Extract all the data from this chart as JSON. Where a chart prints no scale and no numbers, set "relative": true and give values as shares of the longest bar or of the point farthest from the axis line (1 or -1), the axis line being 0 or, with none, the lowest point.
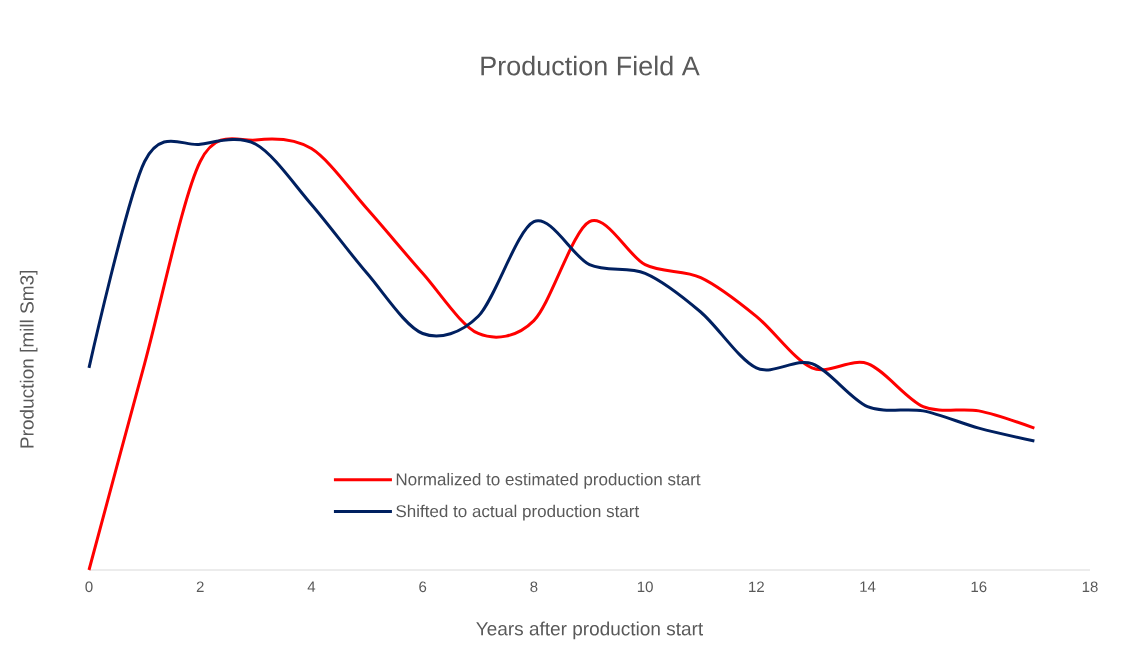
{
  "chart_data": {
    "type": "line",
    "title": "Production Field A",
    "xlabel": "Years after production start",
    "ylabel": "Production [mill Sm3]",
    "relative": true,
    "x": [
      0,
      1,
      2,
      3,
      4,
      5,
      6,
      7,
      8,
      9,
      10,
      11,
      12,
      13,
      14,
      15,
      16,
      17
    ],
    "xlim": [
      0,
      18
    ],
    "xticks": [
      0,
      2,
      4,
      6,
      8,
      10,
      12,
      14,
      16,
      18
    ],
    "series": [
      {
        "name": "Normalized to estimated production start",
        "color": "#ff0000",
        "values": [
          0,
          0.48,
          0.95,
          1.0,
          0.98,
          0.84,
          0.69,
          0.55,
          0.58,
          0.81,
          0.71,
          0.68,
          0.59,
          0.47,
          0.48,
          0.38,
          0.37,
          0.33
        ]
      },
      {
        "name": "Shifted to actual production start",
        "color": "#002060",
        "values": [
          0.47,
          0.95,
          0.99,
          0.99,
          0.85,
          0.69,
          0.55,
          0.59,
          0.81,
          0.71,
          0.69,
          0.6,
          0.47,
          0.48,
          0.38,
          0.37,
          0.33,
          0.3
        ]
      }
    ],
    "legend": "bottom",
    "grid": false,
    "marker": "none",
    "line_style": "solid"
  }
}
